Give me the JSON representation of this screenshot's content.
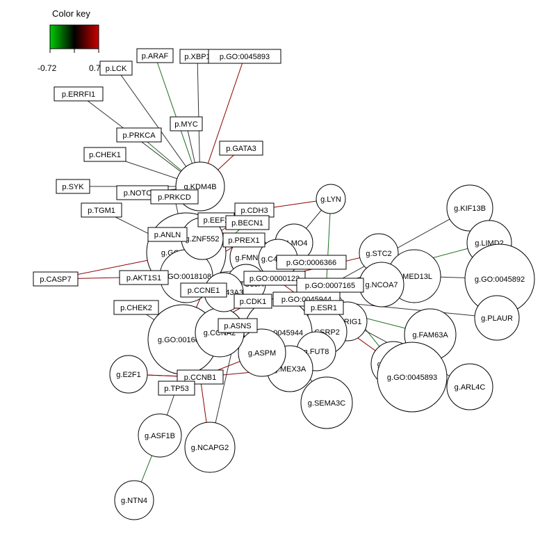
{
  "color_key": {
    "title": "Color key",
    "min_label": "-0.72",
    "max_label": "0.7",
    "low_color": "#00cc00",
    "mid_color": "#000000",
    "high_color": "#cc0000"
  },
  "edge_colors": {
    "positive": "#8b0000",
    "negative": "#1f6b1f",
    "neutral": "#333333"
  },
  "nodes": [
    {
      "id": "g.KDM4B",
      "label": "g.KDM4B"
    },
    {
      "id": "g.GO:0046777",
      "label": "g.GO:0046777"
    },
    {
      "id": "g.GO:0018108",
      "label": "g.GO:0018108"
    },
    {
      "id": "g.GO:0016032",
      "label": "g.GO:0016032"
    },
    {
      "id": "g.LYN",
      "label": "g.LYN"
    },
    {
      "id": "g.LMO4",
      "label": "g.LMO4"
    },
    {
      "id": "g.KIF13B",
      "label": "g.KIF13B"
    },
    {
      "id": "g.LIMD2",
      "label": "g.LIMD2"
    },
    {
      "id": "g.STC2",
      "label": "g.STC2"
    },
    {
      "id": "g.MED13L",
      "label": "g.MED13L"
    },
    {
      "id": "g.GO:0045892",
      "label": "g.GO:0045892"
    },
    {
      "id": "g.NCOA7",
      "label": "g.NCOA7"
    },
    {
      "id": "g.PLAUR",
      "label": "g.PLAUR"
    },
    {
      "id": "g.LRIG1",
      "label": "g.LRIG1"
    },
    {
      "id": "g.FAM63A",
      "label": "g.FAM63A"
    },
    {
      "id": "g.CSRP2",
      "label": "g.CSRP2"
    },
    {
      "id": "g.GO:0045944",
      "label": "g.GO:0045944"
    },
    {
      "id": "g.RUNX3",
      "label": "g.RUNX3"
    },
    {
      "id": "g.GO:0045893",
      "label": "g.GO:0045893"
    },
    {
      "id": "g.ARL4C",
      "label": "g.ARL4C"
    },
    {
      "id": "g.FUT8",
      "label": "g.FUT8"
    },
    {
      "id": "g.MEX3A",
      "label": "g.MEX3A"
    },
    {
      "id": "g.SEMA3C",
      "label": "g.SEMA3C"
    },
    {
      "id": "g.ASPM",
      "label": "g.ASPM"
    },
    {
      "id": "g.CCNA2",
      "label": "g.CCNA2"
    },
    {
      "id": "g.ZNF552",
      "label": "g.ZNF552"
    },
    {
      "id": "g.FMNL2",
      "label": "g.FMNL2"
    },
    {
      "id": "g.C4orf34",
      "label": "g.C4orf34"
    },
    {
      "id": "g.TTC39A",
      "label": "g.TTC39A"
    },
    {
      "id": "g.SLC43A3",
      "label": "g.SLC43A3"
    },
    {
      "id": "g.E2F1",
      "label": "g.E2F1"
    },
    {
      "id": "g.ASF1B",
      "label": "g.ASF1B"
    },
    {
      "id": "g.NCAPG2",
      "label": "g.NCAPG2"
    },
    {
      "id": "g.NTN4",
      "label": "g.NTN4"
    },
    {
      "id": "p.ARAF",
      "label": "p.ARAF"
    },
    {
      "id": "p.XBP1",
      "label": "p.XBP1"
    },
    {
      "id": "p.GO:0045893",
      "label": "p.GO:0045893"
    },
    {
      "id": "p.LCK",
      "label": "p.LCK"
    },
    {
      "id": "p.ERRFI1",
      "label": "p.ERRFI1"
    },
    {
      "id": "p.MYC",
      "label": "p.MYC"
    },
    {
      "id": "p.PRKCA",
      "label": "p.PRKCA"
    },
    {
      "id": "p.GATA3",
      "label": "p.GATA3"
    },
    {
      "id": "p.CHEK1",
      "label": "p.CHEK1"
    },
    {
      "id": "p.SYK",
      "label": "p.SYK"
    },
    {
      "id": "p.NOTCH1",
      "label": "p.NOTCH1"
    },
    {
      "id": "p.PRKCD",
      "label": "p.PRKCD"
    },
    {
      "id": "p.TGM1",
      "label": "p.TGM1"
    },
    {
      "id": "p.CDH3",
      "label": "p.CDH3"
    },
    {
      "id": "p.EEF2",
      "label": "p.EEF2"
    },
    {
      "id": "p.BECN1",
      "label": "p.BECN1"
    },
    {
      "id": "p.ANLN",
      "label": "p.ANLN"
    },
    {
      "id": "p.PREX1",
      "label": "p.PREX1"
    },
    {
      "id": "p.CASP7",
      "label": "p.CASP7"
    },
    {
      "id": "p.AKT1S1",
      "label": "p.AKT1S1"
    },
    {
      "id": "p.GO:0006366",
      "label": "p.GO:0006366"
    },
    {
      "id": "p.GO:0000122",
      "label": "p.GO:0000122"
    },
    {
      "id": "p.GO:0007165",
      "label": "p.GO:0007165"
    },
    {
      "id": "p.CCNE1",
      "label": "p.CCNE1"
    },
    {
      "id": "p.CDK1",
      "label": "p.CDK1"
    },
    {
      "id": "p.GO:0045944",
      "label": "p.GO:0045944"
    },
    {
      "id": "p.ESR1",
      "label": "p.ESR1"
    },
    {
      "id": "p.CHEK2",
      "label": "p.CHEK2"
    },
    {
      "id": "p.ASNS",
      "label": "p.ASNS"
    },
    {
      "id": "p.CCNB1",
      "label": "p.CCNB1"
    },
    {
      "id": "p.TP53",
      "label": "p.TP53"
    }
  ],
  "edges": [
    {
      "from": "p.ARAF",
      "to": "g.KDM4B",
      "sign": "negative"
    },
    {
      "from": "p.LCK",
      "to": "g.KDM4B",
      "sign": "neutral"
    },
    {
      "from": "p.XBP1",
      "to": "g.KDM4B",
      "sign": "neutral"
    },
    {
      "from": "p.GO:0045893",
      "to": "g.KDM4B",
      "sign": "positive"
    },
    {
      "from": "p.ERRFI1",
      "to": "g.KDM4B",
      "sign": "neutral"
    },
    {
      "from": "p.MYC",
      "to": "g.KDM4B",
      "sign": "neutral"
    },
    {
      "from": "p.PRKCA",
      "to": "g.KDM4B",
      "sign": "negative"
    },
    {
      "from": "p.GATA3",
      "to": "g.KDM4B",
      "sign": "positive"
    },
    {
      "from": "p.CHEK1",
      "to": "g.KDM4B",
      "sign": "neutral"
    },
    {
      "from": "p.SYK",
      "to": "g.KDM4B",
      "sign": "neutral"
    },
    {
      "from": "p.NOTCH1",
      "to": "g.KDM4B",
      "sign": "neutral"
    },
    {
      "from": "p.TGM1",
      "to": "g.GO:0046777",
      "sign": "neutral"
    },
    {
      "from": "p.CASP7",
      "to": "g.GO:0018108",
      "sign": "positive"
    },
    {
      "from": "p.CASP7",
      "to": "g.GO:0046777",
      "sign": "positive"
    },
    {
      "from": "p.CHEK2",
      "to": "g.GO:0016032",
      "sign": "neutral"
    },
    {
      "from": "g.E2F1",
      "to": "p.CCNB1",
      "sign": "positive"
    },
    {
      "from": "g.E2F1",
      "to": "p.CCNB1",
      "sign": "positive"
    },
    {
      "from": "p.TP53",
      "to": "g.ASF1B",
      "sign": "neutral"
    },
    {
      "from": "g.ASF1B",
      "to": "g.NTN4",
      "sign": "negative"
    },
    {
      "from": "p.CCNB1",
      "to": "g.NCAPG2",
      "sign": "positive"
    },
    {
      "from": "p.CCNB1",
      "to": "g.ASPM",
      "sign": "positive"
    },
    {
      "from": "p.CCNB1",
      "to": "g.MEX3A",
      "sign": "positive"
    },
    {
      "from": "p.ASNS",
      "to": "g.NCAPG2",
      "sign": "neutral"
    },
    {
      "from": "g.LYN",
      "to": "p.CDH3",
      "sign": "positive"
    },
    {
      "from": "g.LYN",
      "to": "g.LMO4",
      "sign": "neutral"
    },
    {
      "from": "g.LYN",
      "to": "g.CSRP2",
      "sign": "negative"
    },
    {
      "from": "g.KIF13B",
      "to": "p.GO:0007165",
      "sign": "neutral"
    },
    {
      "from": "g.LIMD2",
      "to": "p.GO:0007165",
      "sign": "negative"
    },
    {
      "from": "g.GO:0045892",
      "to": "g.MED13L",
      "sign": "neutral"
    },
    {
      "from": "g.PLAUR",
      "to": "p.GO:0045944",
      "sign": "neutral"
    },
    {
      "from": "g.RUNX3",
      "to": "p.GO:0007165",
      "sign": "negative"
    },
    {
      "from": "g.GO:0045893",
      "to": "p.GO:0000122",
      "sign": "positive"
    },
    {
      "from": "g.ARL4C",
      "to": "p.GO:0045944",
      "sign": "neutral"
    },
    {
      "from": "g.FAM63A",
      "to": "p.ESR1",
      "sign": "negative"
    },
    {
      "from": "g.SEMA3C",
      "to": "g.GO:0045944",
      "sign": "neutral"
    },
    {
      "from": "p.AKT1S1",
      "to": "g.GO:0018108",
      "sign": "neutral"
    },
    {
      "from": "p.ANLN",
      "to": "g.GO:0046777",
      "sign": "positive"
    },
    {
      "from": "p.EEF2",
      "to": "g.GO:0018108",
      "sign": "neutral"
    },
    {
      "from": "p.BECN1",
      "to": "g.GO:0018108",
      "sign": "negative"
    },
    {
      "from": "p.PREX1",
      "to": "g.GO:0018108",
      "sign": "positive"
    },
    {
      "from": "p.GO:0006366",
      "to": "g.GO:0018108",
      "sign": "negative"
    },
    {
      "from": "p.GO:0000122",
      "to": "g.GO:0018108",
      "sign": "positive"
    },
    {
      "from": "p.GO:0007165",
      "to": "g.GO:0018108",
      "sign": "negative"
    },
    {
      "from": "p.CCNE1",
      "to": "g.GO:0016032",
      "sign": "positive"
    },
    {
      "from": "p.CDK1",
      "to": "g.GO:0016032",
      "sign": "positive"
    },
    {
      "from": "p.GO:0045944",
      "to": "g.GO:0016032",
      "sign": "neutral"
    },
    {
      "from": "p.ESR1",
      "to": "g.GO:0045944",
      "sign": "negative"
    },
    {
      "from": "g.STC2",
      "to": "p.GO:0000122",
      "sign": "positive"
    },
    {
      "from": "g.NCOA7",
      "to": "p.GO:0000122",
      "sign": "negative"
    },
    {
      "from": "g.LRIG1",
      "to": "p.GO:0045944",
      "sign": "positive"
    },
    {
      "from": "g.FUT8",
      "to": "p.GO:0045944",
      "sign": "neutral"
    },
    {
      "from": "g.MED13L",
      "to": "p.GO:0007165",
      "sign": "positive"
    },
    {
      "from": "p.PRKCD",
      "to": "g.GO:0046777",
      "sign": "neutral"
    },
    {
      "from": "p.CDH3",
      "to": "g.GO:0046777",
      "sign": "positive"
    },
    {
      "from": "g.LMO4",
      "to": "p.GO:0006366",
      "sign": "negative"
    }
  ]
}
